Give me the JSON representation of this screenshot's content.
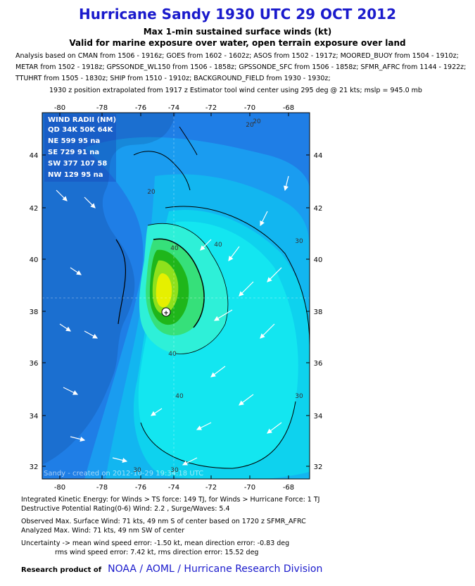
{
  "title": "Hurricane Sandy 1930 UTC 29 OCT 2012",
  "subtitle1": "Max 1-min sustained surface winds (kt)",
  "subtitle2": "Valid for marine exposure over water, open terrain exposure over land",
  "analysis_lines": [
    "Analysis based on CMAN from 1506 - 1916z; GOES from 1602 - 1602z; ASOS from 1502 - 1917z; MOORED_BUOY from 1504 - 1910z;",
    "METAR from 1502 - 1918z; GPSSONDE_WL150 from 1506 - 1858z; GPSSONDE_SFC from 1506 - 1858z; SFMR_AFRC from 1144 - 1922z;",
    "TTUHRT from 1505 - 1830z; SHIP from 1510 - 1910z; BACKGROUND_FIELD from 1930 - 1930z;"
  ],
  "position_line": "1930 z position extrapolated from 1917 z Estimator tool wind center using 295 deg @ 21 kts; mslp = 945.0 mb",
  "map": {
    "lon_ticks": [
      "-80",
      "-78",
      "-76",
      "-74",
      "-72",
      "-70",
      "-68"
    ],
    "lat_ticks": [
      "44",
      "42",
      "40",
      "38",
      "36",
      "34",
      "32"
    ],
    "contour_labels": [
      "20",
      "20",
      "30",
      "30",
      "30",
      "40",
      "40",
      "40",
      "40",
      "30",
      "20"
    ],
    "wind_radii": {
      "title": "WIND RADII (NM)",
      "header": "QD 34K 50K 64K",
      "rows": [
        "NE 599  95   na",
        "SE 729  91   na",
        "SW 377 107  58",
        "NW 129  95   na"
      ]
    },
    "watermark": "Sandy - created on 2012-10-29 19:34:18 UTC",
    "colors": {
      "ocean_low": "#1e5fd8",
      "c15": "#1f7ee6",
      "c20": "#1a9cf0",
      "c25": "#12b6f0",
      "c30": "#0ed2ee",
      "c35": "#13e6f0",
      "c40": "#2ef0d8",
      "c50": "#36e07a",
      "c55": "#1fb61a",
      "c60": "#8fe11c",
      "c64": "#e6f000",
      "land": "#0a1a5a"
    }
  },
  "stats": {
    "ike": "Integrated Kinetic Energy: for Winds > TS force: 149 TJ, for Winds > Hurricane Force: 1 TJ",
    "dpr": "Destructive Potential Rating(0-6)  Wind: 2.2 , Surge/Waves: 5.4",
    "observed": "Observed Max. Surface Wind: 71 kts, 49 nm S of center based on 1720 z SFMR_AFRC",
    "analyzed": "Analyzed Max. Wind: 71 kts, 49 nm  SW of center",
    "uncertainty1": "Uncertainty -> mean wind speed error:  -1.50 kt, mean direction error:  -0.83 deg",
    "uncertainty2": "rms wind speed error: 7.42 kt, rms direction error: 15.52 deg"
  },
  "footer": {
    "label": "Research product of",
    "org": "NOAA  /  AOML  /  Hurricane Research Division"
  }
}
